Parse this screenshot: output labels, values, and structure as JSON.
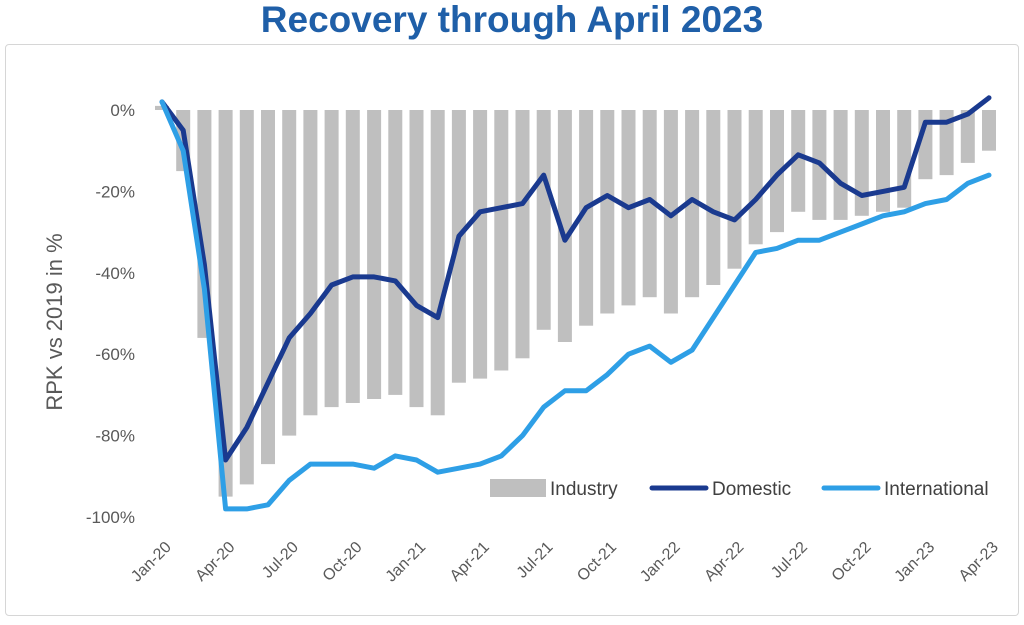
{
  "colors": {
    "title": "#1f5fa8",
    "industry": "#bfbfbf",
    "domestic": "#1a3a8f",
    "international": "#2e9fe6",
    "text": "#595959"
  },
  "chart_data": {
    "type": "bar",
    "title": "Recovery through April 2023",
    "xlabel": "",
    "ylabel": "RPK vs 2019 in %",
    "ylim": [
      -100,
      0
    ],
    "yticks": [
      0,
      -20,
      -40,
      -60,
      -80,
      -100
    ],
    "ytick_labels": [
      "0%",
      "-20%",
      "-40%",
      "-60%",
      "-80%",
      "-100%"
    ],
    "categories": [
      "Jan-20",
      "Feb-20",
      "Mar-20",
      "Apr-20",
      "May-20",
      "Jun-20",
      "Jul-20",
      "Aug-20",
      "Sep-20",
      "Oct-20",
      "Nov-20",
      "Dec-20",
      "Jan-21",
      "Feb-21",
      "Mar-21",
      "Apr-21",
      "May-21",
      "Jun-21",
      "Jul-21",
      "Aug-21",
      "Sep-21",
      "Oct-21",
      "Nov-21",
      "Dec-21",
      "Jan-22",
      "Feb-22",
      "Mar-22",
      "Apr-22",
      "May-22",
      "Jun-22",
      "Jul-22",
      "Aug-22",
      "Sep-22",
      "Oct-22",
      "Nov-22",
      "Dec-22",
      "Jan-23",
      "Feb-23",
      "Mar-23",
      "Apr-23"
    ],
    "xtick_labels": [
      "Jan-20",
      "Apr-20",
      "Jul-20",
      "Oct-20",
      "Jan-21",
      "Apr-21",
      "Jul-21",
      "Oct-21",
      "Jan-22",
      "Apr-22",
      "Jul-22",
      "Oct-22",
      "Jan-23",
      "Apr-23"
    ],
    "legend": [
      "Industry",
      "Domestic",
      "International"
    ],
    "legend_position": "bottom-right",
    "series": [
      {
        "name": "Industry",
        "kind": "bar",
        "values": [
          1,
          -15,
          -56,
          -95,
          -92,
          -87,
          -80,
          -75,
          -73,
          -72,
          -71,
          -70,
          -73,
          -75,
          -67,
          -66,
          -64,
          -61,
          -54,
          -57,
          -53,
          -50,
          -48,
          -46,
          -50,
          -46,
          -43,
          -39,
          -33,
          -30,
          -25,
          -27,
          -27,
          -26,
          -25,
          -24,
          -17,
          -16,
          -13,
          -10
        ]
      },
      {
        "name": "Domestic",
        "kind": "line",
        "values": [
          2,
          -5,
          -38,
          -86,
          -78,
          -67,
          -56,
          -50,
          -43,
          -41,
          -41,
          -42,
          -48,
          -51,
          -31,
          -25,
          -24,
          -23,
          -16,
          -32,
          -24,
          -21,
          -24,
          -22,
          -26,
          -22,
          -25,
          -27,
          -22,
          -16,
          -11,
          -13,
          -18,
          -21,
          -20,
          -19,
          -3,
          -3,
          -1,
          3
        ]
      },
      {
        "name": "International",
        "kind": "line",
        "values": [
          2,
          -10,
          -44,
          -98,
          -98,
          -97,
          -91,
          -87,
          -87,
          -87,
          -88,
          -85,
          -86,
          -89,
          -88,
          -87,
          -85,
          -80,
          -73,
          -69,
          -69,
          -65,
          -60,
          -58,
          -62,
          -59,
          -51,
          -43,
          -35,
          -34,
          -32,
          -32,
          -30,
          -28,
          -26,
          -25,
          -23,
          -22,
          -18,
          -16
        ]
      }
    ]
  }
}
